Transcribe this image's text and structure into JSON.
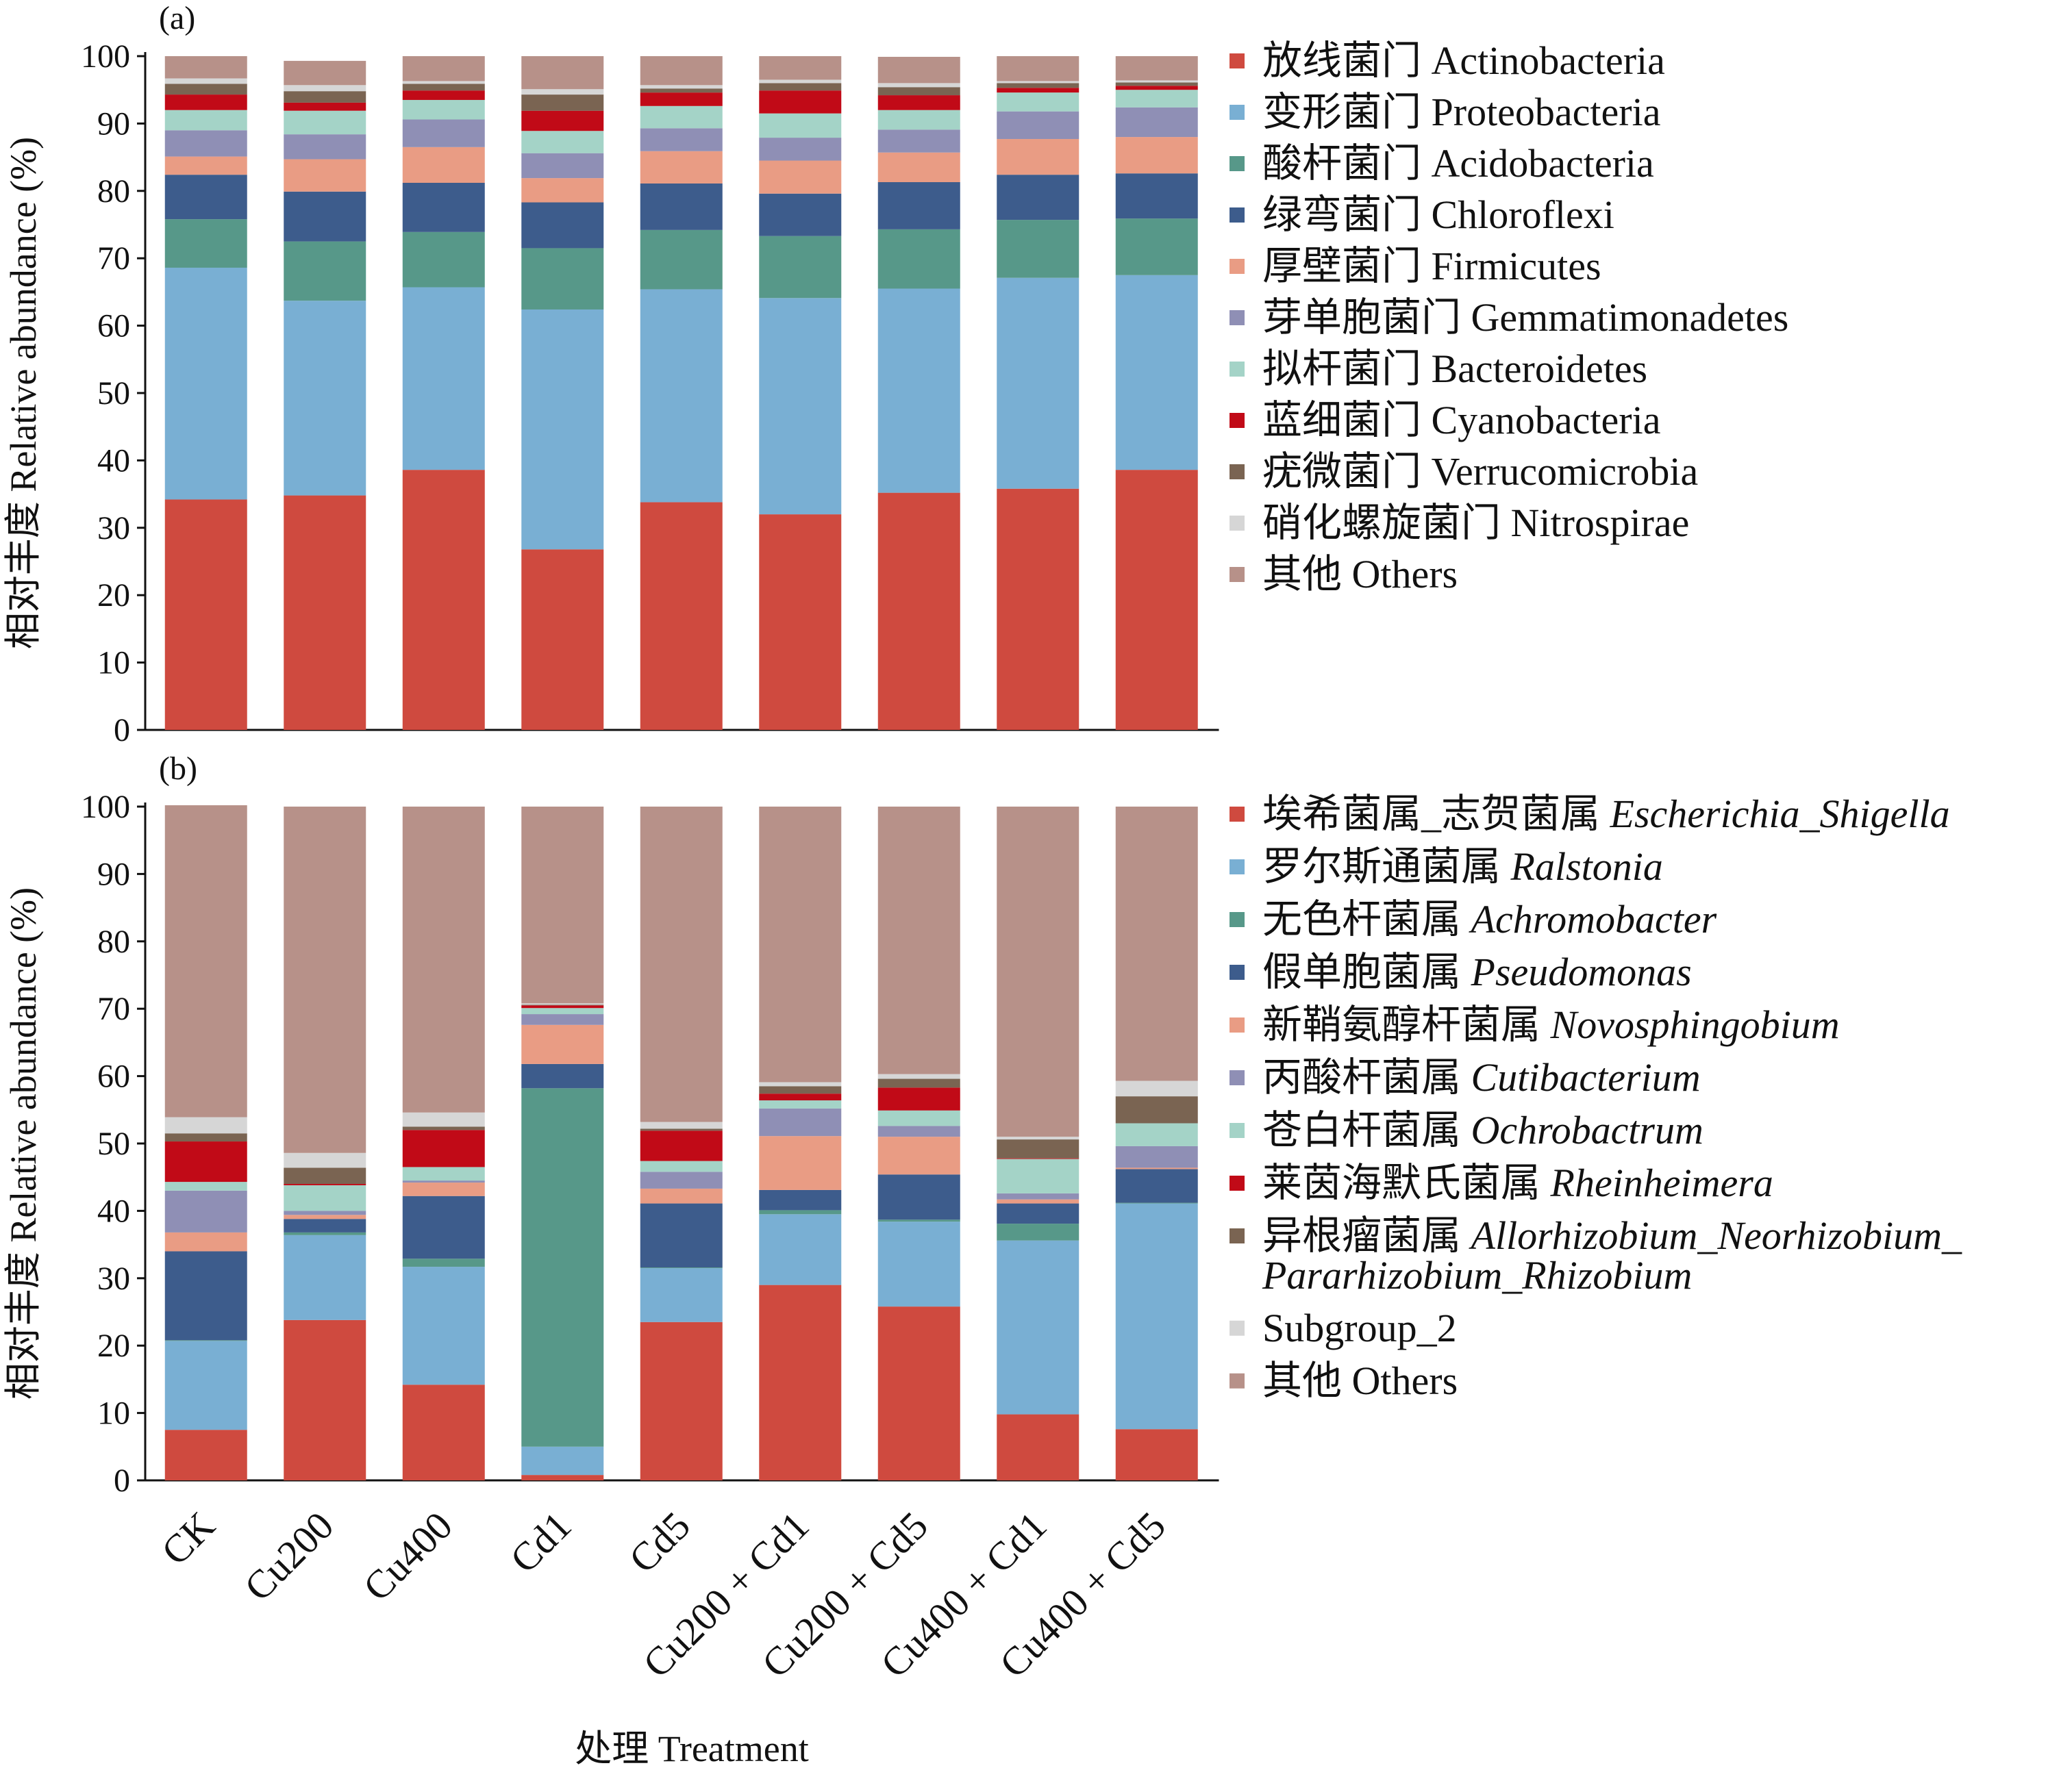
{
  "chart_data": [
    {
      "type": "bar",
      "stacked": true,
      "panel_label": "(a)",
      "ylabel": "相对丰度 Relative abundance (%)",
      "ylim": [
        0,
        100
      ],
      "yticks": [
        0,
        10,
        20,
        30,
        40,
        50,
        60,
        70,
        80,
        90,
        100
      ],
      "categories": [
        "CK",
        "Cu200",
        "Cu400",
        "Cd1",
        "Cd5",
        "Cu200 + Cd1",
        "Cu200 + Cd5",
        "Cu400 + Cd1",
        "Cu400 + Cd5"
      ],
      "legend_position": "right",
      "series": [
        {
          "name": "放线菌门 Actinobacteria",
          "color": "#CF4A3F",
          "values": [
            34.2,
            34.8,
            38.6,
            26.8,
            33.8,
            32.0,
            35.2,
            35.8,
            38.6
          ]
        },
        {
          "name": "变形菌门 Proteobacteria",
          "color": "#79AFD3",
          "values": [
            34.4,
            28.9,
            27.1,
            35.6,
            31.6,
            32.1,
            30.3,
            31.3,
            28.9
          ]
        },
        {
          "name": "酸杆菌门 Acidobacteria",
          "color": "#579889",
          "values": [
            7.2,
            8.8,
            8.2,
            9.1,
            8.8,
            9.2,
            8.8,
            8.6,
            8.4
          ]
        },
        {
          "name": "绿弯菌门 Chloroflexi",
          "color": "#3D5C8C",
          "values": [
            6.6,
            7.4,
            7.3,
            6.8,
            6.9,
            6.3,
            7.0,
            6.7,
            6.7
          ]
        },
        {
          "name": "厚壁菌门 Firmicutes",
          "color": "#E99C84",
          "values": [
            2.7,
            4.8,
            5.3,
            3.6,
            4.8,
            4.9,
            4.4,
            5.3,
            5.4
          ]
        },
        {
          "name": "芽单胞菌门 Gemmatimonadetes",
          "color": "#8F8FB5",
          "values": [
            3.9,
            3.7,
            4.1,
            3.7,
            3.4,
            3.4,
            3.4,
            4.1,
            4.4
          ]
        },
        {
          "name": "拟杆菌门 Bacteroidetes",
          "color": "#A4D3C7",
          "values": [
            3.0,
            3.5,
            2.9,
            3.3,
            3.3,
            3.6,
            2.9,
            2.8,
            2.6
          ]
        },
        {
          "name": "蓝细菌门 Cyanobacteria",
          "color": "#C10A17",
          "values": [
            2.3,
            1.2,
            1.4,
            3.0,
            2.0,
            3.4,
            2.2,
            0.7,
            0.6
          ]
        },
        {
          "name": "疣微菌门 Verrucomicrobia",
          "color": "#7A6452",
          "values": [
            1.6,
            1.7,
            1.0,
            2.4,
            0.6,
            1.1,
            1.2,
            0.7,
            0.5
          ]
        },
        {
          "name": "硝化螺旋菌门 Nitrospirae",
          "color": "#D6D6D6",
          "values": [
            0.8,
            0.9,
            0.4,
            0.8,
            0.5,
            0.5,
            0.6,
            0.3,
            0.3
          ]
        },
        {
          "name": "其他 Others",
          "color": "#B79189",
          "values": [
            3.3,
            3.6,
            3.7,
            4.9,
            4.3,
            3.5,
            3.9,
            3.7,
            3.6
          ]
        }
      ]
    },
    {
      "type": "bar",
      "stacked": true,
      "panel_label": "(b)",
      "ylabel": "相对丰度 Relative abundance (%)",
      "xlabel": "处理 Treatment",
      "ylim": [
        0,
        100
      ],
      "yticks": [
        0,
        10,
        20,
        30,
        40,
        50,
        60,
        70,
        80,
        90,
        100
      ],
      "categories": [
        "CK",
        "Cu200",
        "Cu400",
        "Cd1",
        "Cd5",
        "Cu200 + Cd1",
        "Cu200 + Cd5",
        "Cu400 + Cd1",
        "Cu400 + Cd5"
      ],
      "legend_position": "right",
      "series": [
        {
          "name_cn": "埃希菌属_志贺菌属",
          "name_latin": "Escherichia_Shigella",
          "color": "#CF4A3F",
          "values": [
            7.5,
            23.8,
            14.2,
            0.8,
            23.5,
            29.0,
            25.8,
            9.8,
            7.6
          ]
        },
        {
          "name_cn": "罗尔斯通菌属",
          "name_latin": "Ralstonia",
          "color": "#79AFD3",
          "values": [
            13.2,
            12.6,
            17.5,
            4.2,
            8.0,
            10.5,
            12.6,
            25.8,
            33.5
          ]
        },
        {
          "name_cn": "无色杆菌属",
          "name_latin": "Achromobacter",
          "color": "#579889",
          "values": [
            0.1,
            0.4,
            1.2,
            53.2,
            0.1,
            0.6,
            0.3,
            2.5,
            0.1
          ]
        },
        {
          "name_cn": "假单胞菌属",
          "name_latin": "Pseudomonas",
          "color": "#3D5C8C",
          "values": [
            13.2,
            2.0,
            9.3,
            3.6,
            9.5,
            3.0,
            6.7,
            3.0,
            5.0
          ]
        },
        {
          "name_cn": "新鞘氨醇杆菌属",
          "name_latin": "Novosphingobium",
          "color": "#E99C84",
          "values": [
            2.8,
            0.6,
            2.0,
            5.8,
            2.2,
            8.0,
            5.6,
            0.6,
            0.2
          ]
        },
        {
          "name_cn": "丙酸杆菌属",
          "name_latin": "Cutibacterium",
          "color": "#8F8FB5",
          "values": [
            6.2,
            0.6,
            0.3,
            1.6,
            2.5,
            4.1,
            1.6,
            0.9,
            3.2
          ]
        },
        {
          "name_cn": "苍白杆菌属",
          "name_latin": "Ochrobactrum",
          "color": "#A4D3C7",
          "values": [
            1.3,
            3.8,
            2.0,
            0.9,
            1.6,
            1.2,
            2.3,
            5.1,
            3.4
          ]
        },
        {
          "name_cn": "莱茵海默氏菌属",
          "name_latin": "Rheinheimera",
          "color": "#C10A17",
          "values": [
            6.0,
            0.2,
            5.5,
            0.4,
            4.5,
            1.0,
            3.4,
            0.1,
            0.0
          ]
        },
        {
          "name_cn": "异根瘤菌属",
          "name_latin": "Allorhizobium_Neorhizobium_\nPararhizobium_Rhizobium",
          "color": "#7A6452",
          "values": [
            1.2,
            2.4,
            0.5,
            0.1,
            0.3,
            1.1,
            1.3,
            2.8,
            4.0
          ]
        },
        {
          "name_cn": "",
          "name_latin": "Subgroup_2",
          "color": "#D6D6D6",
          "values": [
            2.4,
            2.2,
            2.1,
            0.2,
            1.0,
            0.6,
            0.7,
            0.4,
            2.3
          ]
        },
        {
          "name_cn": "其他",
          "name_latin": "Others",
          "color": "#B79189",
          "values": [
            46.3,
            51.4,
            45.4,
            29.2,
            46.8,
            40.9,
            39.7,
            49.0,
            40.7
          ]
        }
      ]
    }
  ]
}
